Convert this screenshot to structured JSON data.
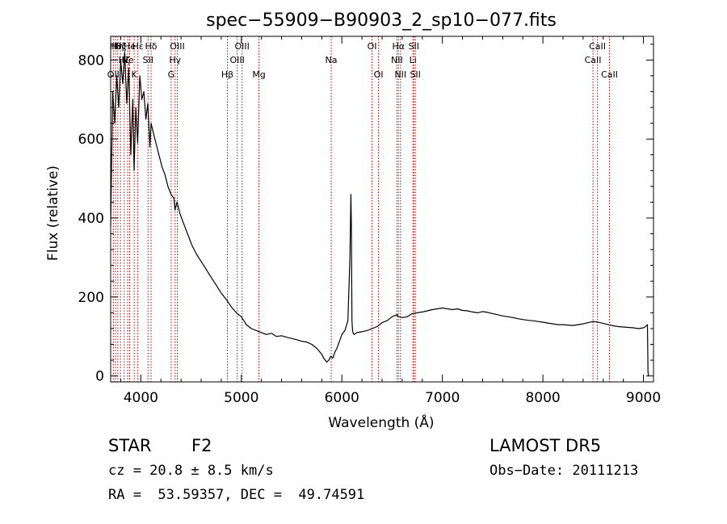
{
  "chart_data": {
    "type": "line",
    "title": "spec−55909−B90903_2_sp10−077.fits",
    "xlabel": "Wavelength (Å)",
    "ylabel": "Flux (relative)",
    "xlim": [
      3700,
      9100
    ],
    "ylim": [
      -15,
      860
    ],
    "xticks": [
      4000,
      5000,
      6000,
      7000,
      8000,
      9000
    ],
    "yticks": [
      0,
      200,
      400,
      600,
      800
    ],
    "grid": false,
    "line_color": "#000000",
    "marker_color": "#c00000",
    "series": [
      {
        "x": [
          3700,
          3720,
          3740,
          3760,
          3780,
          3800,
          3820,
          3840,
          3860,
          3880,
          3900,
          3920,
          3933,
          3950,
          3968,
          3990,
          4010,
          4030,
          4050,
          4070,
          4090,
          4102,
          4120,
          4150,
          4180,
          4210,
          4240,
          4270,
          4300,
          4330,
          4340,
          4360,
          4390,
          4420,
          4450,
          4480,
          4510,
          4550,
          4600,
          4650,
          4700,
          4750,
          4800,
          4861,
          4900,
          4950,
          5000,
          5050,
          5100,
          5150,
          5200,
          5250,
          5300,
          5350,
          5400,
          5450,
          5500,
          5550,
          5600,
          5650,
          5700,
          5750,
          5800,
          5820,
          5850,
          5870,
          5890,
          5910,
          5930,
          5950,
          5980,
          6000,
          6030,
          6060,
          6080,
          6090,
          6095,
          6100,
          6105,
          6110,
          6120,
          6150,
          6200,
          6250,
          6300,
          6350,
          6400,
          6450,
          6500,
          6550,
          6563,
          6600,
          6650,
          6700,
          6750,
          6800,
          6850,
          6900,
          6950,
          7000,
          7050,
          7100,
          7150,
          7200,
          7250,
          7300,
          7350,
          7400,
          7450,
          7500,
          7550,
          7600,
          7650,
          7700,
          7750,
          7800,
          7850,
          7900,
          7950,
          8000,
          8050,
          8100,
          8150,
          8200,
          8250,
          8300,
          8350,
          8400,
          8450,
          8500,
          8550,
          8600,
          8650,
          8700,
          8750,
          8800,
          8850,
          8900,
          8950,
          9000,
          9020,
          9040,
          9045,
          9050
        ],
        "y": [
          380,
          720,
          640,
          760,
          680,
          800,
          740,
          820,
          690,
          780,
          560,
          700,
          520,
          680,
          590,
          760,
          700,
          720,
          650,
          690,
          580,
          640,
          620,
          590,
          560,
          530,
          510,
          480,
          460,
          450,
          420,
          440,
          410,
          390,
          370,
          350,
          330,
          310,
          290,
          270,
          250,
          230,
          210,
          190,
          175,
          160,
          150,
          130,
          120,
          115,
          110,
          105,
          108,
          100,
          102,
          98,
          95,
          92,
          88,
          86,
          80,
          70,
          55,
          45,
          35,
          40,
          50,
          45,
          60,
          70,
          90,
          105,
          115,
          140,
          300,
          460,
          380,
          140,
          120,
          110,
          105,
          110,
          112,
          115,
          120,
          125,
          135,
          140,
          150,
          155,
          150,
          148,
          150,
          158,
          160,
          162,
          165,
          168,
          170,
          172,
          170,
          168,
          170,
          166,
          165,
          162,
          160,
          163,
          161,
          158,
          155,
          152,
          150,
          148,
          145,
          143,
          141,
          140,
          138,
          136,
          134,
          132,
          130,
          130,
          129,
          128,
          130,
          132,
          135,
          138,
          136,
          133,
          130,
          127,
          125,
          124,
          123,
          122,
          120,
          122,
          125,
          130,
          10,
          0
        ]
      }
    ],
    "lines": [
      {
        "w": 3727,
        "label": "OII",
        "row": 3
      },
      {
        "w": 3750,
        "label": "Hθ",
        "row": 1
      },
      {
        "w": 3771,
        "label": "Hη",
        "row": 1
      },
      {
        "w": 3798,
        "label": "Hζ",
        "row": 1
      },
      {
        "w": 3835,
        "label": "Hζ",
        "row": 2
      },
      {
        "w": 3869,
        "label": "Ne",
        "row": 2
      },
      {
        "w": 3889,
        "label": "He",
        "row": 1
      },
      {
        "w": 3934,
        "label": "K",
        "row": 3
      },
      {
        "w": 3970,
        "label": "Hε",
        "row": 1
      },
      {
        "w": 4102,
        "label": "Hδ",
        "row": 1
      },
      {
        "w": 4072,
        "label": "SII",
        "row": 2
      },
      {
        "w": 4302,
        "label": "G",
        "row": 3
      },
      {
        "w": 4341,
        "label": "Hγ",
        "row": 2
      },
      {
        "w": 4363,
        "label": "OIII",
        "row": 1
      },
      {
        "w": 4861,
        "label": "Hβ",
        "row": 3
      },
      {
        "w": 4959,
        "label": "OIII",
        "row": 2
      },
      {
        "w": 5007,
        "label": "OIII",
        "row": 1
      },
      {
        "w": 5175,
        "label": "Mg",
        "row": 3
      },
      {
        "w": 5894,
        "label": "Na",
        "row": 2
      },
      {
        "w": 6300,
        "label": "OI",
        "row": 1
      },
      {
        "w": 6364,
        "label": "OI",
        "row": 3
      },
      {
        "w": 6548,
        "label": "NII",
        "row": 2
      },
      {
        "w": 6563,
        "label": "Hα",
        "row": 1
      },
      {
        "w": 6583,
        "label": "NII",
        "row": 3
      },
      {
        "w": 6707,
        "label": "Li",
        "row": 2
      },
      {
        "w": 6716,
        "label": "SII",
        "row": 1
      },
      {
        "w": 6731,
        "label": "SII",
        "row": 3
      },
      {
        "w": 8498,
        "label": "CaII",
        "row": 2
      },
      {
        "w": 8542,
        "label": "CaII",
        "row": 1
      },
      {
        "w": 8662,
        "label": "CaII",
        "row": 3
      }
    ]
  },
  "info": {
    "class": "STAR",
    "subclass": "F2",
    "survey": "LAMOST DR5",
    "cz": "cz = 20.8 ± 8.5 km/s",
    "obsdate": "Obs−Date: 20111213",
    "radec": "RA =  53.59357, DEC =  49.74591"
  }
}
